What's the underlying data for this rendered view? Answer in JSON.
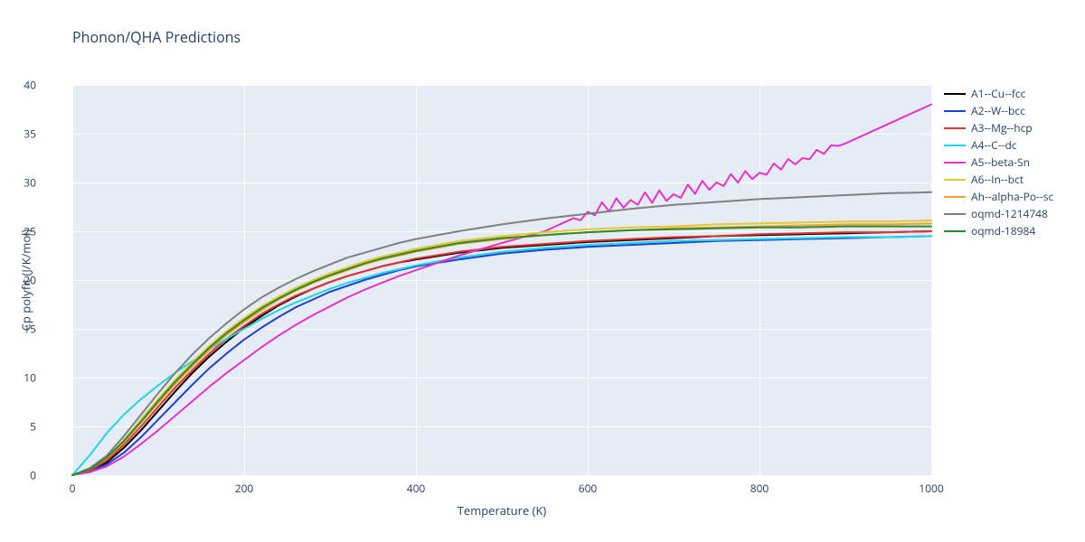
{
  "title": "Phonon/QHA Predictions",
  "xlabel": "Temperature (K)",
  "ylabel": "Cp polyfit (J/K/mol)",
  "type": "line",
  "background_color": "#e5ecf6",
  "grid_color": "#ffffff",
  "axis_font_size": 12,
  "title_font_size": 16,
  "label_font_size": 13,
  "line_width": 2,
  "xlim": [
    0,
    1000
  ],
  "ylim": [
    0,
    40
  ],
  "xticks": [
    0,
    200,
    400,
    600,
    800,
    1000
  ],
  "yticks": [
    0,
    5,
    10,
    15,
    20,
    25,
    30,
    35,
    40
  ],
  "x": [
    0,
    20,
    40,
    60,
    80,
    100,
    120,
    140,
    160,
    180,
    200,
    220,
    240,
    260,
    280,
    300,
    320,
    340,
    360,
    380,
    400,
    450,
    500,
    550,
    600,
    650,
    700,
    750,
    800,
    850,
    900,
    950,
    1000
  ],
  "series": [
    {
      "name": "A1--Cu--fcc",
      "color": "#000000",
      "y": [
        0,
        0.5,
        1.3,
        2.8,
        4.6,
        6.6,
        8.6,
        10.5,
        12.2,
        13.7,
        15.1,
        16.3,
        17.4,
        18.3,
        19.1,
        19.8,
        20.4,
        20.9,
        21.4,
        21.8,
        22.1,
        22.8,
        23.3,
        23.6,
        23.9,
        24.1,
        24.3,
        24.5,
        24.6,
        24.7,
        24.8,
        24.9,
        25.0
      ]
    },
    {
      "name": "A2--W--bcc",
      "color": "#1f3fd6",
      "y": [
        0,
        0.4,
        1.1,
        2.3,
        3.9,
        5.7,
        7.5,
        9.3,
        11.0,
        12.5,
        13.9,
        15.1,
        16.2,
        17.2,
        18.0,
        18.8,
        19.4,
        20.0,
        20.5,
        21.0,
        21.4,
        22.1,
        22.7,
        23.1,
        23.4,
        23.6,
        23.8,
        24.0,
        24.1,
        24.2,
        24.3,
        24.4,
        24.5
      ]
    },
    {
      "name": "A3--Mg--hcp",
      "color": "#e63232",
      "y": [
        0,
        0.5,
        1.5,
        3.1,
        5.0,
        7.0,
        9.0,
        10.8,
        12.5,
        14.0,
        15.3,
        16.5,
        17.5,
        18.4,
        19.1,
        19.8,
        20.4,
        20.9,
        21.4,
        21.8,
        22.2,
        22.9,
        23.4,
        23.7,
        24.0,
        24.2,
        24.4,
        24.5,
        24.7,
        24.8,
        24.9,
        24.9,
        25.0
      ]
    },
    {
      "name": "A4--C--dc",
      "color": "#1fd6e6",
      "y": [
        0,
        2.0,
        4.3,
        6.2,
        7.8,
        9.2,
        10.5,
        11.7,
        12.9,
        14.0,
        15.0,
        16.0,
        16.9,
        17.7,
        18.4,
        19.1,
        19.7,
        20.2,
        20.7,
        21.1,
        21.5,
        22.3,
        22.9,
        23.3,
        23.6,
        23.8,
        24.0,
        24.1,
        24.2,
        24.3,
        24.4,
        24.4,
        24.5
      ]
    },
    {
      "name": "A5--beta-Sn",
      "color": "#e632c8",
      "y": [
        0,
        0.3,
        0.9,
        1.9,
        3.2,
        4.6,
        6.1,
        7.6,
        9.1,
        10.5,
        11.8,
        13.1,
        14.3,
        15.4,
        16.4,
        17.3,
        18.2,
        19.0,
        19.7,
        20.4,
        21.0,
        22.5,
        23.8,
        25.0,
        27.0,
        28.2,
        28.8,
        30.0,
        31.0,
        32.5,
        34.0,
        36.0,
        38.0
      ]
    },
    {
      "name": "A6--In--bct",
      "color": "#e6c832",
      "y": [
        0,
        0.6,
        1.8,
        3.6,
        5.7,
        7.8,
        9.8,
        11.6,
        13.3,
        14.8,
        16.1,
        17.3,
        18.3,
        19.2,
        20.0,
        20.7,
        21.3,
        21.9,
        22.4,
        22.8,
        23.2,
        24.0,
        24.5,
        24.9,
        25.2,
        25.4,
        25.5,
        25.7,
        25.8,
        25.9,
        26.0,
        26.0,
        26.1
      ]
    },
    {
      "name": "Ah--alpha-Po--sc",
      "color": "#f0a030",
      "y": [
        0,
        0.6,
        1.7,
        3.4,
        5.4,
        7.4,
        9.4,
        11.2,
        12.9,
        14.4,
        15.7,
        16.9,
        18.0,
        18.9,
        19.7,
        20.4,
        21.0,
        21.6,
        22.1,
        22.5,
        22.9,
        23.7,
        24.2,
        24.6,
        24.9,
        25.1,
        25.3,
        25.4,
        25.5,
        25.6,
        25.7,
        25.7,
        25.8
      ]
    },
    {
      "name": "oqmd-1214748",
      "color": "#808080",
      "y": [
        0,
        0.7,
        2.0,
        4.0,
        6.2,
        8.4,
        10.5,
        12.4,
        14.1,
        15.6,
        17.0,
        18.2,
        19.2,
        20.1,
        20.9,
        21.6,
        22.3,
        22.8,
        23.3,
        23.8,
        24.2,
        25.0,
        25.7,
        26.3,
        26.8,
        27.3,
        27.7,
        28.0,
        28.3,
        28.5,
        28.7,
        28.9,
        29.0
      ]
    },
    {
      "name": "oqmd-18984",
      "color": "#2a8c2a",
      "y": [
        0,
        0.6,
        1.8,
        3.5,
        5.5,
        7.6,
        9.6,
        11.4,
        13.1,
        14.6,
        15.9,
        17.1,
        18.1,
        19.0,
        19.8,
        20.5,
        21.1,
        21.7,
        22.2,
        22.6,
        23.0,
        23.8,
        24.3,
        24.6,
        24.9,
        25.1,
        25.2,
        25.3,
        25.4,
        25.4,
        25.5,
        25.5,
        25.5
      ]
    }
  ],
  "noise_series": "A5--beta-Sn",
  "noise_x_range": [
    590,
    890
  ],
  "noise_amplitude": 0.6
}
